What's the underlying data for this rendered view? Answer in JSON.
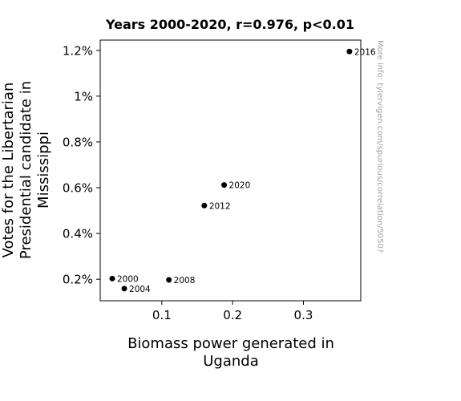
{
  "chart_data": {
    "type": "scatter",
    "title": "Years 2000-2020, r=0.976, p<0.01",
    "xlabel_lines": [
      "Biomass power generated in",
      "Uganda"
    ],
    "ylabel_lines": [
      "Votes for the Libertarian",
      "Presidential candidate in",
      "Mississippi"
    ],
    "xlim": [
      0.013,
      0.381
    ],
    "ylim": [
      0.106,
      1.245
    ],
    "xticks": [
      0.1,
      0.2,
      0.3
    ],
    "xtick_labels": [
      "0.1",
      "0.2",
      "0.3"
    ],
    "yticks": [
      0.2,
      0.4,
      0.6,
      0.8,
      1.0,
      1.2
    ],
    "ytick_labels": [
      "0.2%",
      "0.4%",
      "0.6%",
      "0.8%",
      "1%",
      "1.2%"
    ],
    "points": [
      {
        "label": "2000",
        "x": 0.03,
        "y": 0.203
      },
      {
        "label": "2004",
        "x": 0.047,
        "y": 0.159
      },
      {
        "label": "2008",
        "x": 0.11,
        "y": 0.197
      },
      {
        "label": "2012",
        "x": 0.16,
        "y": 0.522
      },
      {
        "label": "2016",
        "x": 0.365,
        "y": 1.195
      },
      {
        "label": "2020",
        "x": 0.188,
        "y": 0.612
      }
    ],
    "marker_color": "#000000",
    "grid": false
  },
  "watermark": "More info: tylervigen.com/spurious/correlation/5050?"
}
